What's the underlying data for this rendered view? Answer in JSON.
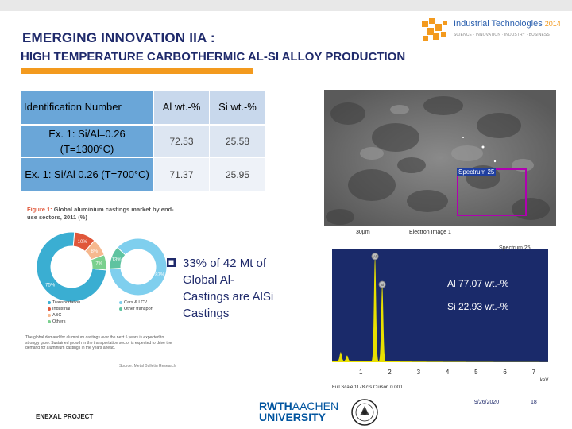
{
  "header": {
    "title_line1": "EMERGING INNOVATION IIA :",
    "title_line2": "HIGH TEMPERATURE CARBOTHERMIC AL-SI ALLOY PRODUCTION",
    "logo_title": "Industrial Technologies",
    "logo_year": "2014",
    "logo_subtitle": "SCIENCE · INNOVATION · INDUSTRY · BUSINESS",
    "accent_color": "#f39a1e",
    "title_color": "#1f2a6b"
  },
  "table": {
    "headers": [
      "Identification Number",
      "Al wt.-%",
      "Si wt.-%"
    ],
    "rows": [
      {
        "id": "Ex. 1: Si/Al=0.26 (T=1300°C)",
        "al": "72.53",
        "si": "25.58"
      },
      {
        "id": "Ex. 1: Si/Al 0.26 (T=700°C)",
        "al": "71.37",
        "si": "25.95"
      }
    ]
  },
  "figure": {
    "label": "Figure 1:",
    "caption": "Global aluminium castings market by end-use sectors, 2011 (%)",
    "outer_ring": {
      "segments": [
        {
          "label": "Transportation",
          "value": 75,
          "color": "#3aaed2",
          "text": "75%"
        },
        {
          "label": "Industrial",
          "value": 10,
          "color": "#e0573a",
          "text": "10%"
        },
        {
          "label": "ABC",
          "value": 8,
          "color": "#f6b88e",
          "text": "8%"
        },
        {
          "label": "Others",
          "value": 7,
          "color": "#7ad08e",
          "text": "7%"
        }
      ]
    },
    "inner_ring": {
      "segments": [
        {
          "label": "Cars & LCV",
          "value": 87,
          "color": "#7fcfee",
          "text": "87%"
        },
        {
          "label": "Other transport",
          "value": 13,
          "color": "#5fc3a0",
          "text": "13%"
        }
      ]
    },
    "legend_left": [
      "Transportation",
      "Industrial",
      "ABC",
      "Others"
    ],
    "legend_right": [
      "Cars & LCV",
      "Other transport"
    ],
    "body_text": "The global demand for aluminium castings over the next 5 years is expected to strongly grow. Sustained growth in the transportation sector is expected to drive the demand for aluminium castings in the years ahead.",
    "source": "Source: Metal Bulletin Research"
  },
  "bullet": {
    "text": "33% of 42 Mt of Global Al-Castings are AlSi Castings"
  },
  "sem": {
    "scale_label": "30µm",
    "image_label": "Electron Image 1",
    "spectrum_box_label": "Spectrum 25"
  },
  "spectrum": {
    "title": "Spectrum 25",
    "composition_al": "Al 77.07 wt.-%",
    "composition_si": "Si 22.93 wt.-%",
    "x_ticks": [
      "1",
      "2",
      "3",
      "4",
      "5",
      "6",
      "7"
    ],
    "x_unit": "keV",
    "footer_label": "Full Scale 1178 cts Cursor: 0.000",
    "peak_al_label": "Al",
    "peak_si_label": "Si",
    "peak_color": "#e8e000"
  },
  "footer": {
    "project": "ENEXAL PROJECT",
    "logo_line1_bold": "RWTH",
    "logo_line1_light": "AACHEN",
    "logo_line2": "UNIVERSITY",
    "date": "9/26/2020",
    "page": "18"
  }
}
